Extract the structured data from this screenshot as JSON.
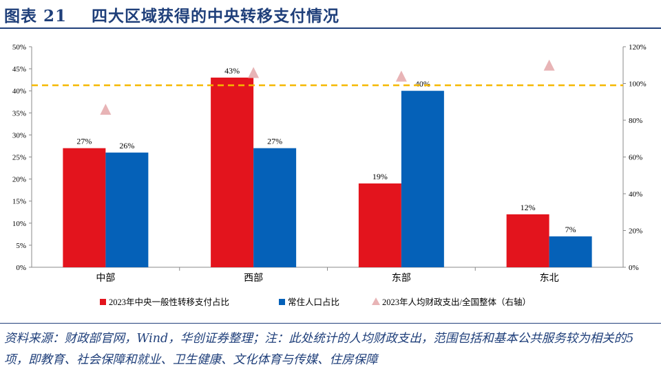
{
  "header": {
    "title": "图表 21    四大区域获得的中央转移支付情况"
  },
  "footer": {
    "source": "资料来源：财政部官网，Wind，华创证券整理；注：此处统计的人均财政支出，范围包括和基本公共服务较为相关的5项，即教育、社会保障和就业、卫生健康、文化体育与传媒、住房保障"
  },
  "chart_data": {
    "type": "bar",
    "categories": [
      "中部",
      "西部",
      "东部",
      "东北"
    ],
    "series": [
      {
        "name": "2023年中央一般性转移支付占比",
        "axis": "left",
        "color": "#e3141d",
        "values": [
          27,
          43,
          19,
          12
        ],
        "labels": [
          "27%",
          "43%",
          "19%",
          "12%"
        ]
      },
      {
        "name": "常住人口占比",
        "axis": "left",
        "color": "#0561b8",
        "values": [
          26,
          27,
          40,
          7
        ],
        "labels": [
          "26%",
          "27%",
          "40%",
          "7%"
        ]
      },
      {
        "name": "2023年人均财政支出/全国整体（右轴）",
        "axis": "right",
        "type": "scatter",
        "marker": "triangle",
        "color": "#e8b4b6",
        "values": [
          86,
          106,
          104,
          110
        ]
      }
    ],
    "reference_line": {
      "axis": "right",
      "value": 99,
      "color": "#f5b800",
      "style": "dashed"
    },
    "ylim": [
      0,
      50
    ],
    "yticks": [
      "0%",
      "5%",
      "10%",
      "15%",
      "20%",
      "25%",
      "30%",
      "35%",
      "40%",
      "45%",
      "50%"
    ],
    "y2lim": [
      0,
      120
    ],
    "y2ticks": [
      "0%",
      "20%",
      "40%",
      "60%",
      "80%",
      "100%",
      "120%"
    ],
    "legend": "bottom"
  }
}
